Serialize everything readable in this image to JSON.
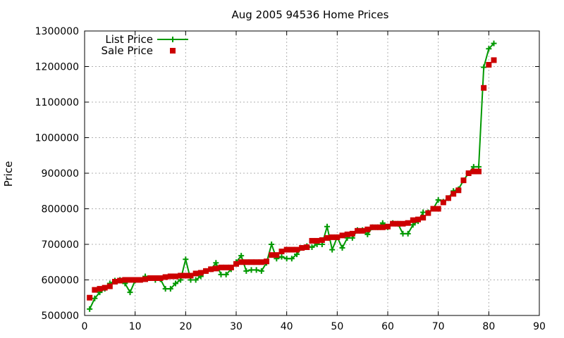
{
  "chart_data": {
    "type": "line",
    "title": "Aug 2005 94536 Home Prices",
    "xlabel": "",
    "ylabel": "Price",
    "xlim": [
      0,
      90
    ],
    "ylim": [
      500000,
      1300000
    ],
    "xticks": [
      0,
      10,
      20,
      30,
      40,
      50,
      60,
      70,
      80,
      90
    ],
    "yticks": [
      500000,
      600000,
      700000,
      800000,
      900000,
      1000000,
      1100000,
      1200000,
      1300000
    ],
    "grid": true,
    "legend_position": "top-left",
    "x": [
      1,
      2,
      3,
      4,
      5,
      6,
      7,
      8,
      9,
      10,
      11,
      12,
      13,
      14,
      15,
      16,
      17,
      18,
      19,
      20,
      21,
      22,
      23,
      24,
      25,
      26,
      27,
      28,
      29,
      30,
      31,
      32,
      33,
      34,
      35,
      36,
      37,
      38,
      39,
      40,
      41,
      42,
      43,
      44,
      45,
      46,
      47,
      48,
      49,
      50,
      51,
      52,
      53,
      54,
      55,
      56,
      57,
      58,
      59,
      60,
      61,
      62,
      63,
      64,
      65,
      66,
      67,
      68,
      69,
      70,
      71,
      72,
      73,
      74,
      75,
      76,
      77,
      78,
      79,
      80,
      81
    ],
    "series": [
      {
        "name": "List Price",
        "style": "line-plus",
        "color": "#009900",
        "values": [
          518000,
          548000,
          565000,
          575000,
          590000,
          598000,
          600000,
          590000,
          565000,
          598000,
          600000,
          610000,
          605000,
          600000,
          602000,
          575000,
          575000,
          590000,
          600000,
          658000,
          600000,
          600000,
          610000,
          625000,
          630000,
          648000,
          615000,
          615000,
          630000,
          650000,
          668000,
          625000,
          628000,
          628000,
          625000,
          648000,
          700000,
          660000,
          665000,
          660000,
          660000,
          672000,
          690000,
          695000,
          692000,
          700000,
          700000,
          750000,
          685000,
          720000,
          690000,
          718000,
          718000,
          740000,
          740000,
          728000,
          748000,
          748000,
          760000,
          748000,
          760000,
          758000,
          730000,
          730000,
          755000,
          765000,
          790000,
          790000,
          800000,
          825000,
          820000,
          830000,
          850000,
          855000,
          880000,
          900000,
          918000,
          918000,
          1198000,
          1250000,
          1265000
        ]
      },
      {
        "name": "Sale Price",
        "style": "square-points",
        "color": "#cc0000",
        "values": [
          550000,
          572000,
          575000,
          578000,
          582000,
          595000,
          598000,
          600000,
          600000,
          600000,
          600000,
          602000,
          605000,
          605000,
          605000,
          608000,
          610000,
          610000,
          612000,
          612000,
          612000,
          618000,
          620000,
          625000,
          630000,
          632000,
          635000,
          635000,
          635000,
          645000,
          650000,
          650000,
          650000,
          650000,
          650000,
          652000,
          670000,
          670000,
          680000,
          685000,
          685000,
          685000,
          690000,
          692000,
          710000,
          710000,
          712000,
          718000,
          720000,
          720000,
          725000,
          728000,
          730000,
          738000,
          738000,
          742000,
          748000,
          748000,
          748000,
          750000,
          758000,
          758000,
          758000,
          760000,
          768000,
          770000,
          775000,
          788000,
          800000,
          800000,
          818000,
          830000,
          842000,
          852000,
          880000,
          900000,
          905000,
          905000,
          1140000,
          1205000,
          1218000
        ]
      }
    ]
  }
}
